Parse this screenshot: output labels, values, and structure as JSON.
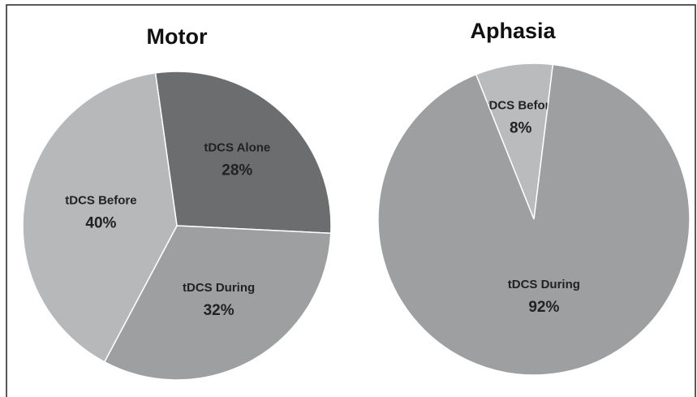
{
  "chart_data": [
    {
      "type": "pie",
      "title": "Motor",
      "categories": [
        "tDCS Alone",
        "tDCS During",
        "tDCS Before"
      ],
      "values": [
        28,
        32,
        40
      ],
      "value_labels": [
        "28%",
        "32%",
        "40%"
      ],
      "colors": [
        "#6b6d6f",
        "#9d9fa1",
        "#b6b8ba"
      ]
    },
    {
      "type": "pie",
      "title": "Aphasia",
      "categories": [
        "tDCS Before",
        "tDCS During"
      ],
      "values": [
        8,
        92
      ],
      "value_labels": [
        "8%",
        "92%"
      ],
      "colors": [
        "#b9bbbd",
        "#9d9fa1"
      ]
    }
  ]
}
